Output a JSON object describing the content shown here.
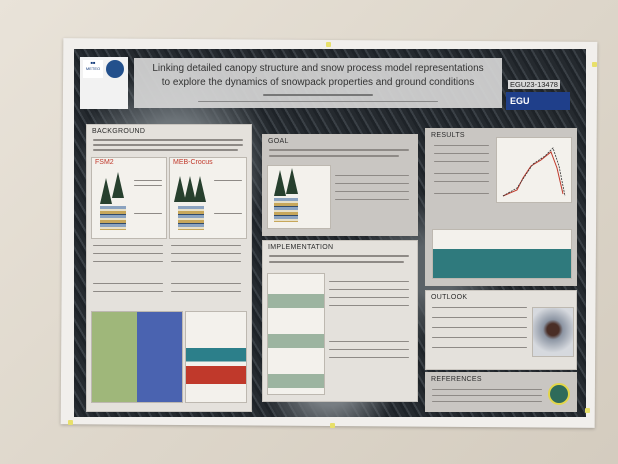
{
  "poster": {
    "title_line1": "Linking detailed canopy structure and snow process model representations",
    "title_line2": "to explore the dynamics of snowpack properties and ground conditions",
    "abstract_id": "EGU23-13478",
    "logos": [
      "METEO FRANCE",
      "CNRM",
      "EGU"
    ],
    "sections": {
      "background": "BACKGROUND",
      "fsm2": "FSM2",
      "meb_crocus": "MEB-Crocus",
      "goal": "GOAL",
      "implementation": "IMPLEMENTATION",
      "results": "RESULTS",
      "outlook": "OUTLOOK",
      "references": "REFERENCES"
    }
  },
  "colors": {
    "wall": "#e4ddd2",
    "poster_bg": "#2a2f34",
    "panel": "#e4e1dc",
    "egu_blue": "#1f3f8a"
  }
}
